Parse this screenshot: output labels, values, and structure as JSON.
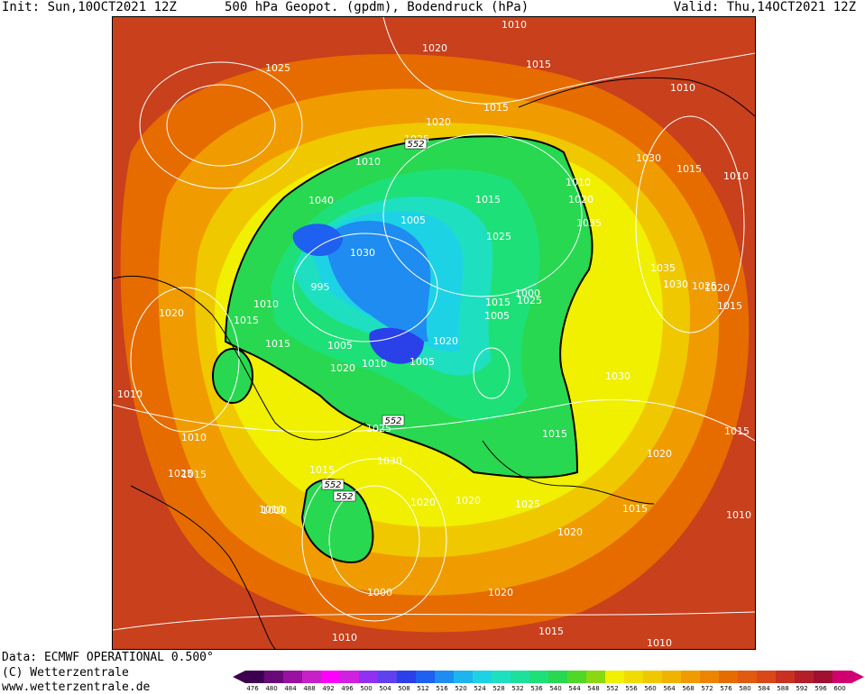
{
  "header": {
    "init": "Init: Sun,10OCT2021 12Z",
    "title": "500 hPa Geopot. (gpdm), Bodendruck (hPa)",
    "valid": "Valid: Thu,14OCT2021 12Z"
  },
  "footer": {
    "data_line": "Data: ECMWF OPERATIONAL 0.500°",
    "copyright": "(C) Wetterzentrale",
    "website": "www.wetterzentrale.de"
  },
  "legend": {
    "ticks": [
      "476",
      "480",
      "484",
      "488",
      "492",
      "496",
      "500",
      "504",
      "508",
      "512",
      "516",
      "520",
      "524",
      "528",
      "532",
      "536",
      "540",
      "544",
      "548",
      "552",
      "556",
      "560",
      "564",
      "568",
      "572",
      "576",
      "580",
      "584",
      "588",
      "592",
      "596",
      "600"
    ],
    "colors": [
      "#3d0050",
      "#6a0a78",
      "#9a10a0",
      "#c820c8",
      "#ff00ff",
      "#d020e0",
      "#9030f0",
      "#6040f0",
      "#2a40e8",
      "#1e60f0",
      "#1e8cf0",
      "#1eb4f0",
      "#1ed2e6",
      "#1ee0c0",
      "#1ee09c",
      "#1ee078",
      "#28d850",
      "#50d828",
      "#8ad812",
      "#f0f000",
      "#f0dc00",
      "#f0c800",
      "#f0b400",
      "#f09c00",
      "#ec8400",
      "#e66c00",
      "#e05a10",
      "#d84818",
      "#c83020",
      "#b41e28",
      "#a01030",
      "#d00070"
    ]
  },
  "map": {
    "contour_552_label": "552",
    "pressure_labels": [
      "1010",
      "1020",
      "1025",
      "1015",
      "1010",
      "1015",
      "1020",
      "1030",
      "1015",
      "1010",
      "1025",
      "1010",
      "552",
      "1010",
      "1020",
      "1035",
      "1040",
      "1005",
      "1015",
      "1025",
      "1030",
      "1000",
      "1035",
      "1025",
      "1030",
      "1020",
      "995",
      "1015",
      "1025",
      "1015",
      "1020",
      "1015",
      "1010",
      "1015",
      "1005",
      "1020",
      "1010",
      "1005",
      "1020",
      "1005",
      "1030",
      "1010",
      "552",
      "1025",
      "1030",
      "552",
      "1015",
      "1020",
      "1025",
      "1015",
      "1015",
      "1010",
      "1025",
      "552",
      "1020",
      "1020",
      "1010",
      "1020",
      "1015",
      "1015",
      "1010",
      "1010",
      "1000",
      "1020",
      "1010",
      "1015",
      "1010"
    ]
  }
}
